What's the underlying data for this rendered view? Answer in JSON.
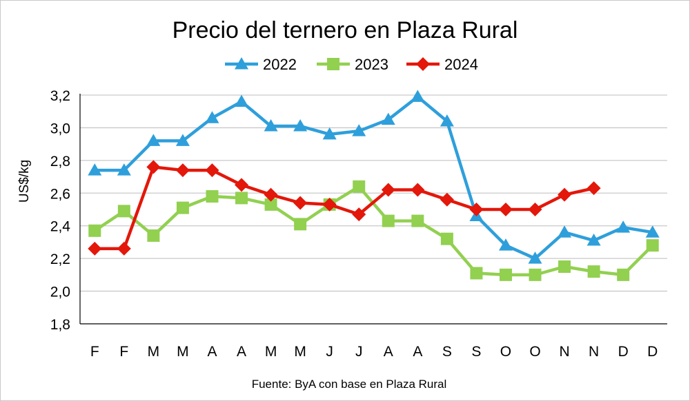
{
  "chart_data": {
    "type": "line",
    "title": "Precio del ternero en Plaza Rural",
    "ylabel": "US$/kg",
    "xlabel": "",
    "source": "Fuente: ByA con base en Plaza Rural",
    "categories": [
      "F",
      "F",
      "M",
      "M",
      "A",
      "A",
      "M",
      "M",
      "J",
      "J",
      "A",
      "A",
      "S",
      "S",
      "O",
      "O",
      "N",
      "N",
      "D",
      "D"
    ],
    "ylim": [
      1.8,
      3.2
    ],
    "yticks": [
      1.8,
      2.0,
      2.2,
      2.4,
      2.6,
      2.8,
      3.0,
      3.2
    ],
    "ytick_labels": [
      "1,8",
      "2,0",
      "2,2",
      "2,4",
      "2,6",
      "2,8",
      "3,0",
      "3,2"
    ],
    "grid": true,
    "legend_position": "top",
    "series": [
      {
        "name": "2022",
        "color": "#2E9FDB",
        "marker": "triangle",
        "values": [
          2.74,
          2.74,
          2.92,
          2.92,
          3.06,
          3.16,
          3.01,
          3.01,
          2.96,
          2.98,
          3.05,
          3.19,
          3.04,
          2.46,
          2.28,
          2.2,
          2.36,
          2.31,
          2.39,
          2.36
        ]
      },
      {
        "name": "2023",
        "color": "#92D050",
        "marker": "square",
        "values": [
          2.37,
          2.49,
          2.34,
          2.51,
          2.58,
          2.57,
          2.53,
          2.41,
          2.53,
          2.64,
          2.43,
          2.43,
          2.32,
          2.11,
          2.1,
          2.1,
          2.15,
          2.12,
          2.1,
          2.28
        ]
      },
      {
        "name": "2024",
        "color": "#E3170A",
        "marker": "diamond",
        "values": [
          2.26,
          2.26,
          2.76,
          2.74,
          2.74,
          2.65,
          2.59,
          2.54,
          2.53,
          2.47,
          2.62,
          2.62,
          2.56,
          2.5,
          2.5,
          2.5,
          2.59,
          2.63,
          null,
          null
        ]
      }
    ]
  }
}
